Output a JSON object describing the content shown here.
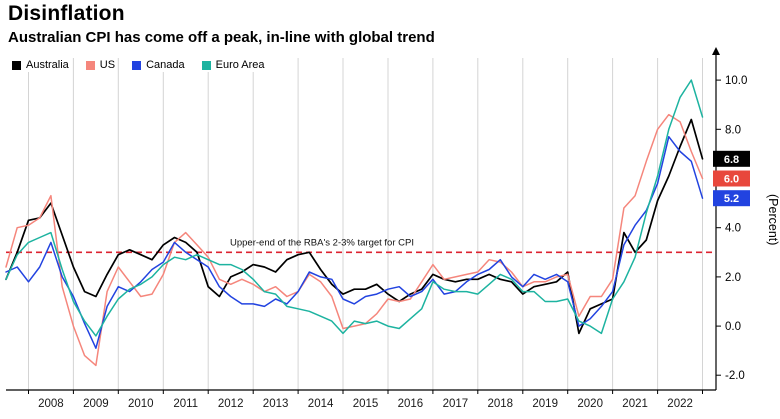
{
  "chart_data": {
    "type": "line",
    "title": "Disinflation",
    "subtitle": "Australian CPI has come off a peak, in-line with global trend",
    "ylabel": "(Percent)",
    "ylim": [
      -2.6,
      10.9
    ],
    "yticks": [
      -2,
      0,
      2,
      4,
      6,
      8,
      10
    ],
    "ytick_labels": [
      "-2.0",
      "0.0",
      "2.0",
      "4.0",
      "6.0",
      "8.0",
      "10.0"
    ],
    "xtick_years": [
      2008,
      2009,
      2010,
      2011,
      2012,
      2013,
      2014,
      2015,
      2016,
      2017,
      2018,
      2019,
      2020,
      2021,
      2022
    ],
    "grid": "vertical",
    "legend_position": "top-left",
    "axis_side": "right",
    "x": [
      2007.5,
      2007.75,
      2008.0,
      2008.25,
      2008.5,
      2008.75,
      2009.0,
      2009.25,
      2009.5,
      2009.75,
      2010.0,
      2010.25,
      2010.5,
      2010.75,
      2011.0,
      2011.25,
      2011.5,
      2011.75,
      2012.0,
      2012.25,
      2012.5,
      2012.75,
      2013.0,
      2013.25,
      2013.5,
      2013.75,
      2014.0,
      2014.25,
      2014.5,
      2014.75,
      2015.0,
      2015.25,
      2015.5,
      2015.75,
      2016.0,
      2016.25,
      2016.5,
      2016.75,
      2017.0,
      2017.25,
      2017.5,
      2017.75,
      2018.0,
      2018.25,
      2018.5,
      2018.75,
      2019.0,
      2019.25,
      2019.5,
      2019.75,
      2020.0,
      2020.25,
      2020.5,
      2020.75,
      2021.0,
      2021.25,
      2021.5,
      2021.75,
      2022.0,
      2022.25,
      2022.5,
      2022.75,
      2023.0
    ],
    "series": [
      {
        "name": "Australia",
        "color": "#000000",
        "values": [
          1.9,
          3.0,
          4.3,
          4.4,
          5.0,
          3.7,
          2.4,
          1.4,
          1.2,
          2.1,
          2.9,
          3.1,
          2.9,
          2.7,
          3.3,
          3.6,
          3.4,
          3.0,
          1.6,
          1.2,
          2.0,
          2.2,
          2.5,
          2.4,
          2.2,
          2.7,
          2.9,
          3.0,
          2.3,
          1.7,
          1.3,
          1.5,
          1.5,
          1.7,
          1.3,
          1.0,
          1.3,
          1.5,
          2.1,
          1.9,
          1.8,
          1.9,
          1.9,
          2.1,
          1.9,
          1.8,
          1.3,
          1.6,
          1.7,
          1.8,
          2.2,
          -0.3,
          0.7,
          0.9,
          1.1,
          3.8,
          3.0,
          3.5,
          5.1,
          6.1,
          7.3,
          8.4,
          6.8
        ]
      },
      {
        "name": "US",
        "color": "#f5867c",
        "values": [
          2.4,
          4.0,
          4.1,
          4.4,
          5.3,
          1.6,
          0.0,
          -1.2,
          -1.6,
          1.4,
          2.4,
          1.8,
          1.2,
          1.3,
          2.1,
          3.4,
          3.8,
          3.3,
          2.8,
          1.9,
          1.7,
          1.9,
          1.7,
          1.4,
          1.6,
          1.2,
          1.4,
          2.1,
          1.8,
          1.2,
          -0.1,
          0.0,
          0.1,
          0.5,
          1.1,
          1.0,
          1.1,
          1.8,
          2.5,
          1.9,
          2.0,
          2.1,
          2.2,
          2.7,
          2.6,
          2.2,
          1.6,
          1.8,
          1.8,
          2.0,
          2.1,
          0.4,
          1.2,
          1.2,
          1.9,
          4.8,
          5.3,
          6.7,
          8.0,
          8.6,
          8.3,
          7.1,
          6.0
        ]
      },
      {
        "name": "Canada",
        "color": "#2243e0",
        "values": [
          2.2,
          2.4,
          1.8,
          2.4,
          3.4,
          2.0,
          1.2,
          0.1,
          -0.9,
          0.8,
          1.6,
          1.4,
          1.8,
          2.3,
          2.6,
          3.4,
          3.0,
          2.7,
          2.4,
          1.6,
          1.2,
          0.9,
          0.9,
          0.8,
          1.1,
          0.9,
          1.4,
          2.2,
          2.0,
          1.9,
          1.1,
          0.9,
          1.2,
          1.3,
          1.5,
          1.6,
          1.2,
          1.4,
          1.9,
          1.3,
          1.4,
          1.8,
          2.1,
          2.3,
          2.7,
          2.0,
          1.6,
          2.1,
          1.9,
          2.1,
          1.8,
          0.0,
          0.3,
          0.8,
          1.4,
          3.3,
          4.1,
          4.7,
          5.8,
          7.7,
          7.1,
          6.7,
          5.2
        ]
      },
      {
        "name": "Euro Area",
        "color": "#1db3a0",
        "values": [
          1.9,
          2.9,
          3.4,
          3.6,
          3.8,
          2.3,
          1.0,
          0.2,
          -0.4,
          0.4,
          1.1,
          1.5,
          1.7,
          2.0,
          2.5,
          2.8,
          2.7,
          2.9,
          2.7,
          2.5,
          2.5,
          2.3,
          1.9,
          1.4,
          1.3,
          0.8,
          0.7,
          0.6,
          0.4,
          0.2,
          -0.3,
          0.2,
          0.1,
          0.2,
          0.0,
          -0.1,
          0.3,
          0.7,
          1.8,
          1.5,
          1.4,
          1.4,
          1.3,
          1.7,
          2.1,
          1.9,
          1.4,
          1.4,
          1.0,
          1.0,
          1.1,
          0.2,
          0.0,
          -0.3,
          1.1,
          1.8,
          2.8,
          4.6,
          6.1,
          8.0,
          9.3,
          10.0,
          8.5
        ]
      }
    ],
    "reference_line": {
      "value": 3,
      "color": "#dc2330",
      "style": "dashed",
      "label": "Upper-end of the RBA's 2-3% target for CPI"
    },
    "end_labels": [
      {
        "series": "Australia",
        "text": "6.8",
        "color": "#000000"
      },
      {
        "series": "US",
        "text": "6.0",
        "color": "#e8473c"
      },
      {
        "series": "Canada",
        "text": "5.2",
        "color": "#2243e0"
      }
    ]
  }
}
